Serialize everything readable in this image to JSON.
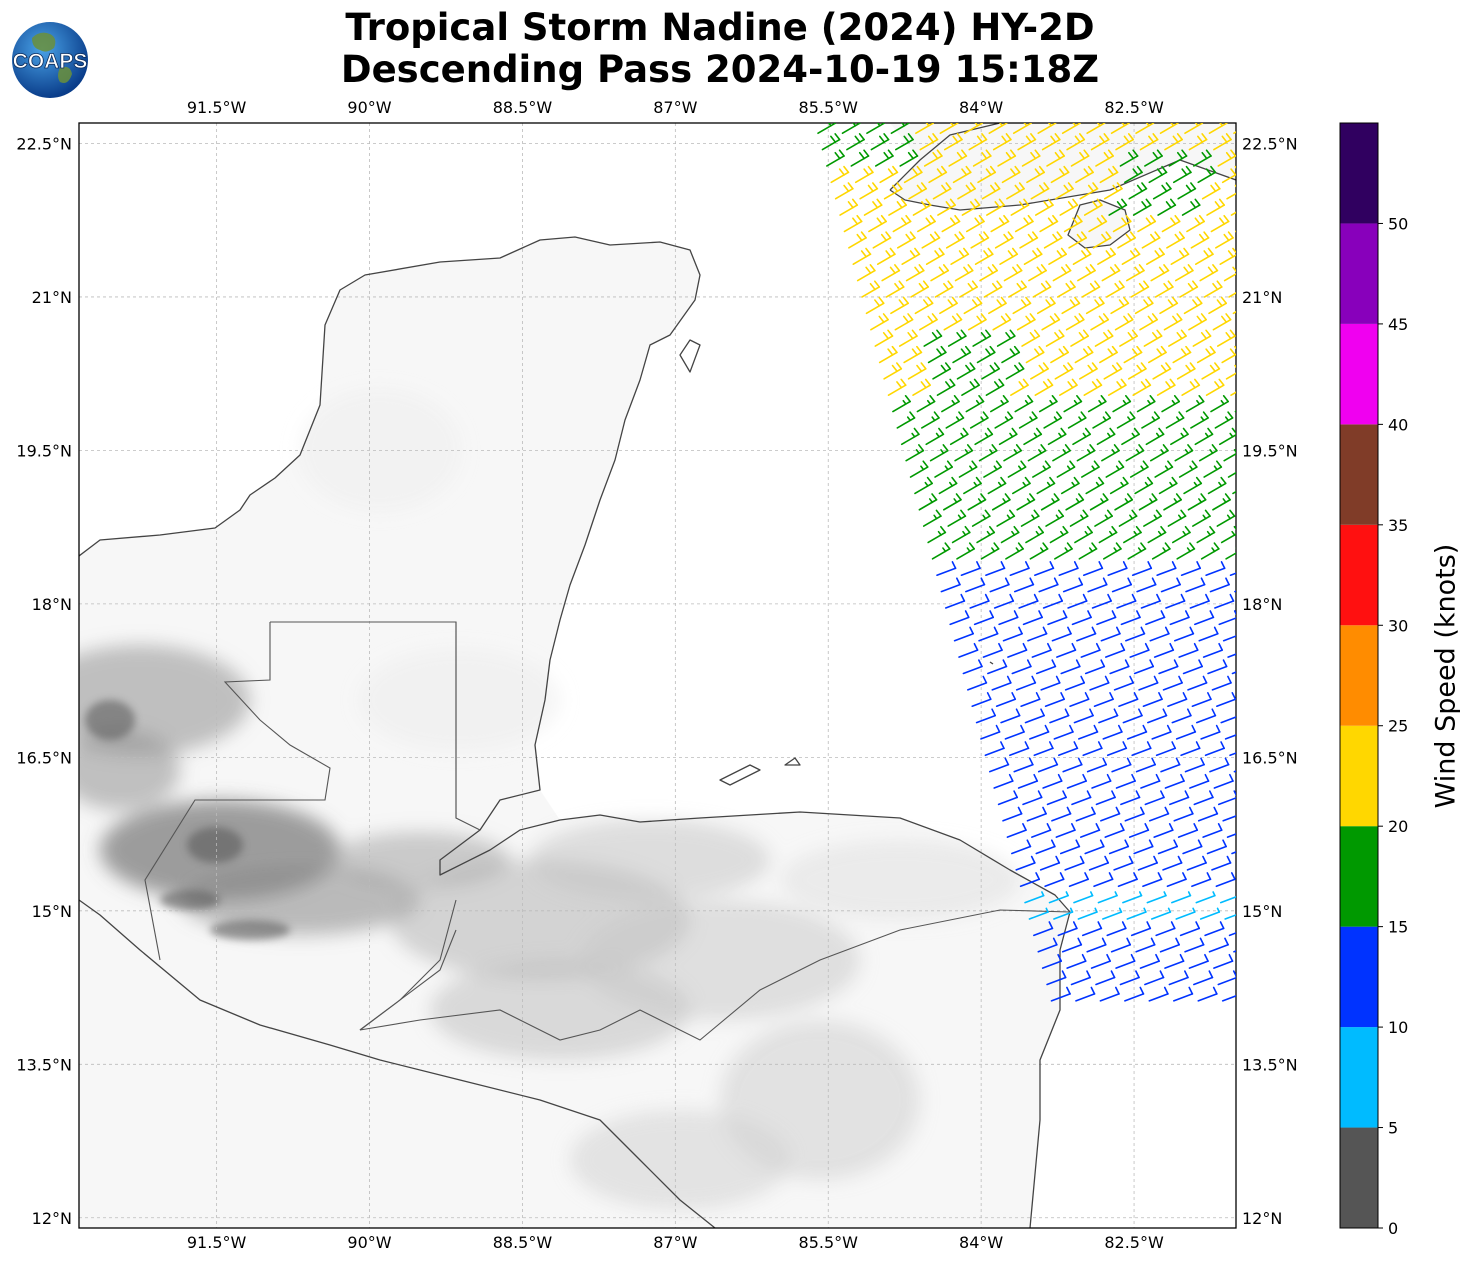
{
  "title": {
    "line1": "Tropical Storm Nadine (2024) HY-2D",
    "line2": "Descending Pass 2024-10-19 15:18Z"
  },
  "logo": {
    "text": "COAPS",
    "icon": "earth-globe-logo"
  },
  "map": {
    "lon_range": [
      -92.85,
      -81.5
    ],
    "lat_range": [
      11.9,
      22.7
    ],
    "lon_ticks": [
      {
        "value": -91.5,
        "label": "91.5°W"
      },
      {
        "value": -90.0,
        "label": "90°W"
      },
      {
        "value": -88.5,
        "label": "88.5°W"
      },
      {
        "value": -87.0,
        "label": "87°W"
      },
      {
        "value": -85.5,
        "label": "85.5°W"
      },
      {
        "value": -84.0,
        "label": "84°W"
      },
      {
        "value": -82.5,
        "label": "82.5°W"
      }
    ],
    "lat_ticks": [
      {
        "value": 22.5,
        "label": "22.5°N"
      },
      {
        "value": 21.0,
        "label": "21°N"
      },
      {
        "value": 19.5,
        "label": "19.5°N"
      },
      {
        "value": 18.0,
        "label": "18°N"
      },
      {
        "value": 16.5,
        "label": "16.5°N"
      },
      {
        "value": 15.0,
        "label": "15°N"
      },
      {
        "value": 13.5,
        "label": "13.5°N"
      },
      {
        "value": 12.0,
        "label": "12°N"
      }
    ],
    "gridlines": true,
    "terrain": "grayscale elevation shading",
    "coastline_color": "#444444"
  },
  "wind_barbs": {
    "swath": "descending pass, NE corner of map",
    "bands": [
      {
        "lat_min": 21.9,
        "lat_max": 22.7,
        "color": "#ffd700",
        "speed_kt": 22
      },
      {
        "lat_min": 20.9,
        "lat_max": 21.9,
        "color": "#ffd700",
        "speed_kt": 23
      },
      {
        "lat_min": 19.9,
        "lat_max": 20.9,
        "color": "#ffd700",
        "speed_kt": 21
      },
      {
        "lat_min": 18.3,
        "lat_max": 19.9,
        "color": "#009900",
        "speed_kt": 17
      },
      {
        "lat_min": 15.2,
        "lat_max": 18.3,
        "color": "#0033ff",
        "speed_kt": 12
      },
      {
        "lat_min": 14.8,
        "lat_max": 15.2,
        "color": "#00bbff",
        "speed_kt": 8
      },
      {
        "lat_min": 14.0,
        "lat_max": 14.8,
        "color": "#0033ff",
        "speed_kt": 11
      }
    ],
    "green_patches": [
      {
        "lon": -82.3,
        "lat": 22.0
      },
      {
        "lon": -84.2,
        "lat": 20.2
      },
      {
        "lon": -85.2,
        "lat": 22.55
      }
    ]
  },
  "colorbar": {
    "label": "Wind Speed (knots)",
    "segments": [
      {
        "from": 0,
        "to": 5,
        "color": "#555555"
      },
      {
        "from": 5,
        "to": 10,
        "color": "#00bbff"
      },
      {
        "from": 10,
        "to": 15,
        "color": "#0033ff"
      },
      {
        "from": 15,
        "to": 20,
        "color": "#009900"
      },
      {
        "from": 20,
        "to": 25,
        "color": "#ffd700"
      },
      {
        "from": 25,
        "to": 30,
        "color": "#ff8c00"
      },
      {
        "from": 30,
        "to": 35,
        "color": "#ff1010"
      },
      {
        "from": 35,
        "to": 40,
        "color": "#803c28"
      },
      {
        "from": 40,
        "to": 45,
        "color": "#f000f0"
      },
      {
        "from": 45,
        "to": 50,
        "color": "#8800bb"
      },
      {
        "from": 50,
        "to": 55,
        "color": "#300060"
      }
    ],
    "ticks": [
      "0",
      "5",
      "10",
      "15",
      "20",
      "25",
      "30",
      "35",
      "40",
      "45",
      "50"
    ]
  }
}
